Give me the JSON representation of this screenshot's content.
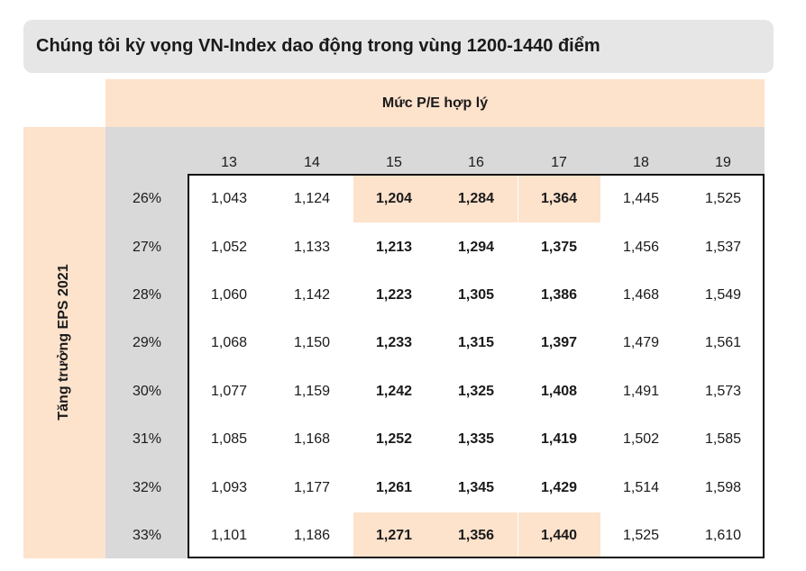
{
  "title": "Chúng tôi kỳ vọng VN-Index dao động trong vùng 1200-1440 điểm",
  "chart_data": {
    "type": "table",
    "title": "Chúng tôi kỳ vọng VN-Index dao động trong vùng 1200-1440 điểm",
    "column_header": "Mức P/E hợp lý",
    "row_header": "Tăng trưởng EPS 2021",
    "columns": [
      "13",
      "14",
      "15",
      "16",
      "17",
      "18",
      "19"
    ],
    "rows": [
      "26%",
      "27%",
      "28%",
      "29%",
      "30%",
      "31%",
      "32%",
      "33%"
    ],
    "values": [
      [
        "1,043",
        "1,124",
        "1,204",
        "1,284",
        "1,364",
        "1,445",
        "1,525"
      ],
      [
        "1,052",
        "1,133",
        "1,213",
        "1,294",
        "1,375",
        "1,456",
        "1,537"
      ],
      [
        "1,060",
        "1,142",
        "1,223",
        "1,305",
        "1,386",
        "1,468",
        "1,549"
      ],
      [
        "1,068",
        "1,150",
        "1,233",
        "1,315",
        "1,397",
        "1,479",
        "1,561"
      ],
      [
        "1,077",
        "1,159",
        "1,242",
        "1,325",
        "1,408",
        "1,491",
        "1,573"
      ],
      [
        "1,085",
        "1,168",
        "1,252",
        "1,335",
        "1,419",
        "1,502",
        "1,585"
      ],
      [
        "1,093",
        "1,177",
        "1,261",
        "1,345",
        "1,429",
        "1,514",
        "1,598"
      ],
      [
        "1,101",
        "1,186",
        "1,271",
        "1,356",
        "1,440",
        "1,525",
        "1,610"
      ]
    ],
    "bold_columns": [
      "15",
      "16",
      "17"
    ],
    "highlighted_cells": [
      [
        "26%",
        "15"
      ],
      [
        "26%",
        "16"
      ],
      [
        "26%",
        "17"
      ],
      [
        "33%",
        "15"
      ],
      [
        "33%",
        "16"
      ],
      [
        "33%",
        "17"
      ]
    ]
  },
  "colors": {
    "title_bar": "#e6e6e6",
    "header_band": "#fde2cc",
    "gray_area": "#d9d9d9",
    "highlight": "#fde2cc",
    "frame": "#111111"
  }
}
